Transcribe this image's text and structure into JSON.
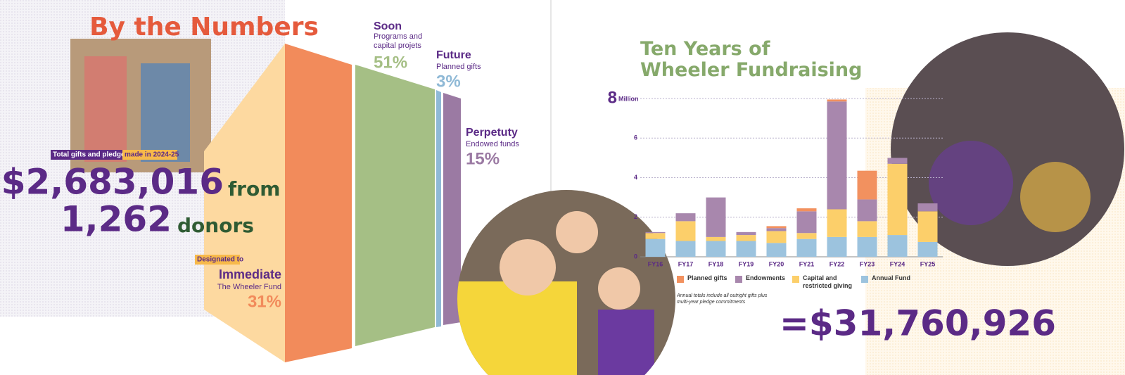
{
  "header": {
    "title": "By the Numbers"
  },
  "summary": {
    "tag1": "Total gifts and pledges",
    "tag2": "made in 2024-25",
    "amount": "$2,683,016",
    "from": "from",
    "donors": "1,262",
    "donors_word": "donors"
  },
  "allocations": [
    {
      "tag": "Designated to",
      "name": "Immediate",
      "detail": "The Wheeler Fund",
      "percent": "31%"
    },
    {
      "name": "Soon",
      "detail": "Programs and capital projets",
      "percent": "51%"
    },
    {
      "name": "Future",
      "detail": "Planned gifts",
      "percent": "3%"
    },
    {
      "name": "Perpetuty",
      "detail": "Endowed funds",
      "percent": "15%"
    }
  ],
  "chart_data": {
    "type": "stacked-bar",
    "title": "Ten Years of Wheeler Fundraising",
    "y_unit": "Million",
    "categories": [
      "FY16",
      "FY17",
      "FY18",
      "FY19",
      "FY20",
      "FY21",
      "FY22",
      "FY23",
      "FY24",
      "FY25"
    ],
    "series": [
      {
        "name": "Annual Fund",
        "color": "#9cc3de",
        "values": [
          0.9,
          0.8,
          0.8,
          0.8,
          0.7,
          0.9,
          1.0,
          1.0,
          1.1,
          0.75
        ]
      },
      {
        "name": "Capital and restricted giving",
        "color": "#fccf6a",
        "values": [
          0.3,
          1.0,
          0.2,
          0.3,
          0.6,
          0.3,
          1.4,
          0.8,
          3.6,
          1.55
        ]
      },
      {
        "name": "Endowments",
        "color": "#a887ad",
        "values": [
          0.05,
          0.4,
          2.0,
          0.15,
          0.15,
          1.1,
          5.45,
          1.1,
          0.3,
          0.4
        ]
      },
      {
        "name": "Planned gifts",
        "color": "#f2915f",
        "values": [
          0,
          0,
          0,
          0,
          0.1,
          0.15,
          0.1,
          1.45,
          0,
          0
        ]
      }
    ],
    "ylim": [
      0,
      8
    ],
    "yticks": [
      0,
      2,
      4,
      6,
      8
    ],
    "grid": true,
    "note": "Annual totals include all outright gifts plus multi-year pledge commitments",
    "total": "=$31,760,926"
  }
}
